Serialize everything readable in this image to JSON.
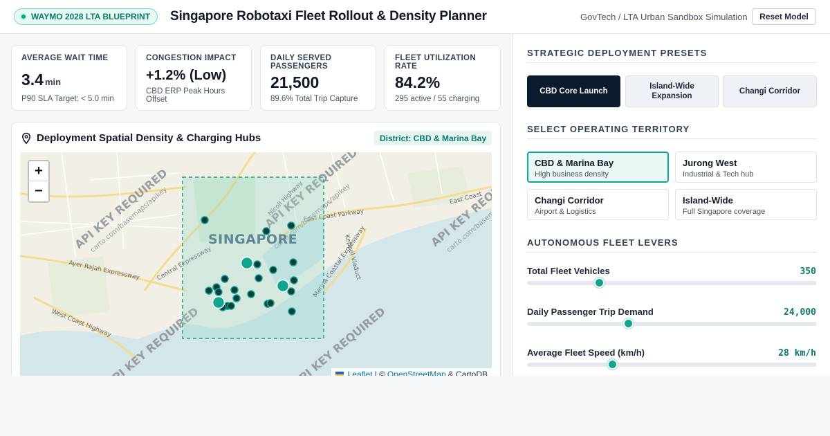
{
  "header": {
    "badge": "WAYMO 2028 LTA BLUEPRINT",
    "title": "Singapore Robotaxi Fleet Rollout & Density Planner",
    "sim_label": "GovTech / LTA Urban Sandbox Simulation",
    "reset_label": "Reset Model"
  },
  "kpis": [
    {
      "title": "AVERAGE WAIT TIME",
      "value": "3.4",
      "unit": "min",
      "sub": "P90 SLA Target: < 5.0 min"
    },
    {
      "title": "CONGESTION IMPACT",
      "value": "+1.2% (Low)",
      "unit": "",
      "sub": "CBD ERP Peak Hours Offset"
    },
    {
      "title": "DAILY SERVED PASSENGERS",
      "value": "21,500",
      "unit": "",
      "sub": "89.6% Total Trip Capture"
    },
    {
      "title": "FLEET UTILIZATION RATE",
      "value": "84.2%",
      "unit": "",
      "sub": "295 active / 55 charging"
    }
  ],
  "map": {
    "title": "Deployment Spatial Density & Charging Hubs",
    "district_tag": "District: CBD & Marina Bay",
    "zoom_in": "+",
    "zoom_out": "−",
    "city_label": "SINGAPORE",
    "watermark": "API KEY REQUIRED",
    "watermark_sub": "carto.com/basemaps/apikey",
    "road_labels": [
      "Ayer Rajah Expressway",
      "Central Expressway",
      "Nicoll Highway",
      "East Coast Parkway",
      "Marina Coastal Expressway",
      "West Coast Highway",
      "Keppel Viaduct",
      "East Coast"
    ],
    "attribution": {
      "leaflet": "Leaflet",
      "sep": "| ©",
      "osm": "OpenStreetMap",
      "carto": "& CartoDB"
    }
  },
  "presets": {
    "title": "STRATEGIC DEPLOYMENT PRESETS",
    "items": [
      {
        "label": "CBD Core Launch",
        "active": true
      },
      {
        "label": "Island-Wide Expansion",
        "active": false
      },
      {
        "label": "Changi Corridor",
        "active": false
      }
    ]
  },
  "territory": {
    "title": "SELECT OPERATING TERRITORY",
    "items": [
      {
        "name": "CBD & Marina Bay",
        "desc": "High business density",
        "active": true
      },
      {
        "name": "Jurong West",
        "desc": "Industrial & Tech hub",
        "active": false
      },
      {
        "name": "Changi Corridor",
        "desc": "Airport & Logistics",
        "active": false
      },
      {
        "name": "Island-Wide",
        "desc": "Full Singapore coverage",
        "active": false
      }
    ]
  },
  "levers": {
    "title": "AUTONOMOUS FLEET LEVERS",
    "items": [
      {
        "label": "Total Fleet Vehicles",
        "value": "350",
        "fraction": 0.25
      },
      {
        "label": "Daily Passenger Trip Demand",
        "value": "24,000",
        "fraction": 0.35
      },
      {
        "label": "Average Fleet Speed (km/h)",
        "value": "28 km/h",
        "fraction": 0.295
      }
    ]
  },
  "colors": {
    "accent": "#12a58d",
    "dark": "#0c1a2e",
    "water": "#d4e6e8",
    "land": "#f2efe6"
  }
}
